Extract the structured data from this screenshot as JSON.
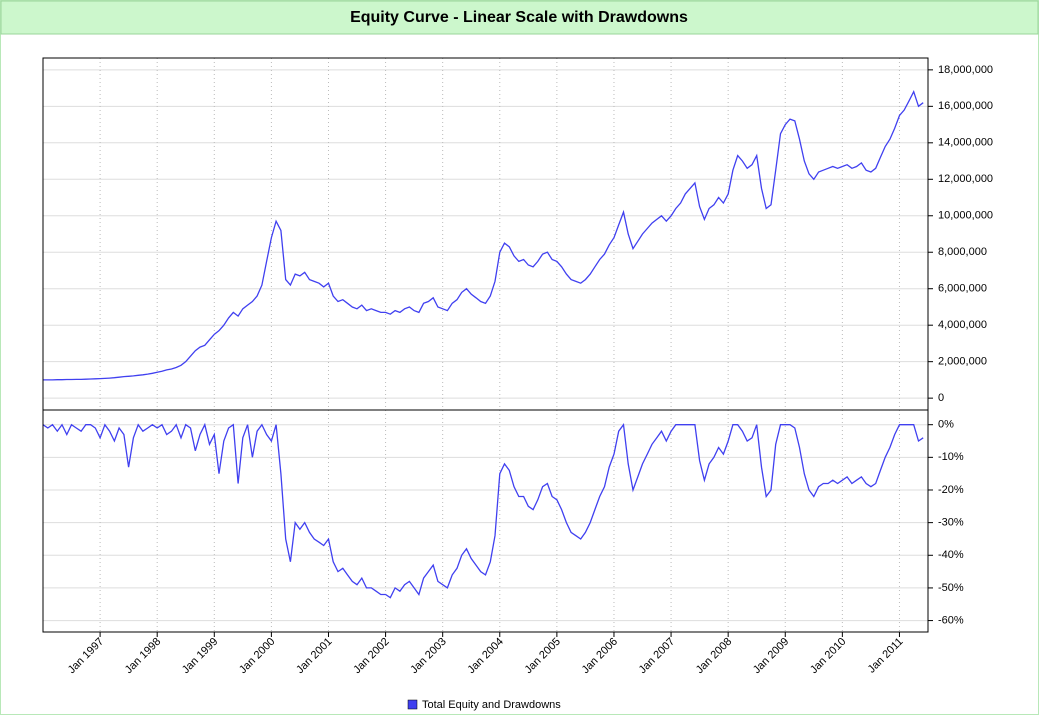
{
  "chart_data": [
    {
      "type": "line",
      "title": "Equity Curve - Linear Scale with Drawdowns",
      "xlim": [
        "1996-01",
        "2011-07"
      ],
      "x": [
        "1996-01",
        "1996-02",
        "1996-03",
        "1996-04",
        "1996-05",
        "1996-06",
        "1996-07",
        "1996-08",
        "1996-09",
        "1996-10",
        "1996-11",
        "1996-12",
        "1997-01",
        "1997-02",
        "1997-03",
        "1997-04",
        "1997-05",
        "1997-06",
        "1997-07",
        "1997-08",
        "1997-09",
        "1997-10",
        "1997-11",
        "1997-12",
        "1998-01",
        "1998-02",
        "1998-03",
        "1998-04",
        "1998-05",
        "1998-06",
        "1998-07",
        "1998-08",
        "1998-09",
        "1998-10",
        "1998-11",
        "1998-12",
        "1999-01",
        "1999-02",
        "1999-03",
        "1999-04",
        "1999-05",
        "1999-06",
        "1999-07",
        "1999-08",
        "1999-09",
        "1999-10",
        "1999-11",
        "1999-12",
        "2000-01",
        "2000-02",
        "2000-03",
        "2000-04",
        "2000-05",
        "2000-06",
        "2000-07",
        "2000-08",
        "2000-09",
        "2000-10",
        "2000-11",
        "2000-12",
        "2001-01",
        "2001-02",
        "2001-03",
        "2001-04",
        "2001-05",
        "2001-06",
        "2001-07",
        "2001-08",
        "2001-09",
        "2001-10",
        "2001-11",
        "2001-12",
        "2002-01",
        "2002-02",
        "2002-03",
        "2002-04",
        "2002-05",
        "2002-06",
        "2002-07",
        "2002-08",
        "2002-09",
        "2002-10",
        "2002-11",
        "2002-12",
        "2003-01",
        "2003-02",
        "2003-03",
        "2003-04",
        "2003-05",
        "2003-06",
        "2003-07",
        "2003-08",
        "2003-09",
        "2003-10",
        "2003-11",
        "2003-12",
        "2004-01",
        "2004-02",
        "2004-03",
        "2004-04",
        "2004-05",
        "2004-06",
        "2004-07",
        "2004-08",
        "2004-09",
        "2004-10",
        "2004-11",
        "2004-12",
        "2005-01",
        "2005-02",
        "2005-03",
        "2005-04",
        "2005-05",
        "2005-06",
        "2005-07",
        "2005-08",
        "2005-09",
        "2005-10",
        "2005-11",
        "2005-12",
        "2006-01",
        "2006-02",
        "2006-03",
        "2006-04",
        "2006-05",
        "2006-06",
        "2006-07",
        "2006-08",
        "2006-09",
        "2006-10",
        "2006-11",
        "2006-12",
        "2007-01",
        "2007-02",
        "2007-03",
        "2007-04",
        "2007-05",
        "2007-06",
        "2007-07",
        "2007-08",
        "2007-09",
        "2007-10",
        "2007-11",
        "2007-12",
        "2008-01",
        "2008-02",
        "2008-03",
        "2008-04",
        "2008-05",
        "2008-06",
        "2008-07",
        "2008-08",
        "2008-09",
        "2008-10",
        "2008-11",
        "2008-12",
        "2009-01",
        "2009-02",
        "2009-03",
        "2009-04",
        "2009-05",
        "2009-06",
        "2009-07",
        "2009-08",
        "2009-09",
        "2009-10",
        "2009-11",
        "2009-12",
        "2010-01",
        "2010-02",
        "2010-03",
        "2010-04",
        "2010-05",
        "2010-06",
        "2010-07",
        "2010-08",
        "2010-09",
        "2010-10",
        "2010-11",
        "2010-12",
        "2011-01",
        "2011-02",
        "2011-03",
        "2011-04",
        "2011-05",
        "2011-06"
      ],
      "series": [
        {
          "name": "Total Equity and Drawdowns",
          "color": "#4040f0",
          "values": [
            1000000,
            1000000,
            1000000,
            1010000,
            1010000,
            1020000,
            1020000,
            1030000,
            1030000,
            1040000,
            1050000,
            1060000,
            1070000,
            1080000,
            1100000,
            1120000,
            1150000,
            1180000,
            1200000,
            1220000,
            1250000,
            1280000,
            1320000,
            1360000,
            1420000,
            1480000,
            1550000,
            1600000,
            1680000,
            1800000,
            2000000,
            2300000,
            2600000,
            2800000,
            2900000,
            3200000,
            3500000,
            3700000,
            4000000,
            4400000,
            4700000,
            4500000,
            4900000,
            5100000,
            5300000,
            5600000,
            6200000,
            7500000,
            8800000,
            9700000,
            9200000,
            6500000,
            6200000,
            6800000,
            6700000,
            6900000,
            6500000,
            6400000,
            6300000,
            6100000,
            6300000,
            5600000,
            5300000,
            5400000,
            5200000,
            5000000,
            4900000,
            5100000,
            4800000,
            4900000,
            4800000,
            4700000,
            4700000,
            4600000,
            4800000,
            4700000,
            4900000,
            5000000,
            4800000,
            4700000,
            5200000,
            5300000,
            5500000,
            5000000,
            4900000,
            4800000,
            5200000,
            5400000,
            5800000,
            6000000,
            5700000,
            5500000,
            5300000,
            5200000,
            5600000,
            6400000,
            8000000,
            8500000,
            8300000,
            7800000,
            7500000,
            7600000,
            7300000,
            7200000,
            7500000,
            7900000,
            8000000,
            7600000,
            7500000,
            7200000,
            6800000,
            6500000,
            6400000,
            6300000,
            6500000,
            6800000,
            7200000,
            7600000,
            7900000,
            8400000,
            8800000,
            9500000,
            10200000,
            9000000,
            8200000,
            8600000,
            9000000,
            9300000,
            9600000,
            9800000,
            10000000,
            9700000,
            10000000,
            10400000,
            10700000,
            11200000,
            11500000,
            11800000,
            10500000,
            9800000,
            10400000,
            10600000,
            11000000,
            10700000,
            11200000,
            12500000,
            13300000,
            13000000,
            12600000,
            12800000,
            13300000,
            11500000,
            10400000,
            10600000,
            12500000,
            14500000,
            15000000,
            15300000,
            15200000,
            14200000,
            13000000,
            12300000,
            12000000,
            12400000,
            12500000,
            12600000,
            12700000,
            12600000,
            12700000,
            12800000,
            12600000,
            12700000,
            12900000,
            12500000,
            12400000,
            12600000,
            13200000,
            13800000,
            14200000,
            14800000,
            15500000,
            15800000,
            16300000,
            16800000,
            16000000,
            16200000
          ]
        }
      ],
      "ylim": [
        -650000,
        18650000
      ],
      "yticks": [
        0,
        {
          "value": 2000000,
          "label": "2,000,000"
        },
        {
          "value": 4000000,
          "label": "4,000,000"
        },
        {
          "value": 6000000,
          "label": "6,000,000"
        },
        {
          "value": 8000000,
          "label": "8,000,000"
        },
        {
          "value": 10000000,
          "label": "10,000,000"
        },
        {
          "value": 12000000,
          "label": "12,000,000"
        },
        {
          "value": 14000000,
          "label": "14,000,000"
        },
        {
          "value": 16000000,
          "label": "16,000,000"
        },
        {
          "value": 18000000,
          "label": "18,000,000"
        }
      ],
      "grid": true
    },
    {
      "type": "line",
      "series": [
        {
          "color": "#4040f0",
          "values": [
            0,
            -1,
            0,
            -2,
            0,
            -3,
            0,
            -1,
            -2,
            0,
            0,
            -1,
            -4,
            0,
            -2,
            -5,
            -1,
            -3,
            -13,
            -4,
            0,
            -2,
            -1,
            0,
            -1,
            0,
            -3,
            -2,
            0,
            -4,
            0,
            -1,
            -8,
            -3,
            0,
            -6,
            -3,
            -15,
            -5,
            -1,
            0,
            -18,
            -4,
            0,
            -10,
            -2,
            0,
            -3,
            -5,
            0,
            -15,
            -35,
            -42,
            -30,
            -32,
            -30,
            -33,
            -35,
            -36,
            -37,
            -35,
            -42,
            -45,
            -44,
            -46,
            -48,
            -49,
            -47,
            -50,
            -50,
            -51,
            -52,
            -52,
            -53,
            -50,
            -51,
            -49,
            -48,
            -50,
            -52,
            -47,
            -45,
            -43,
            -48,
            -49,
            -50,
            -46,
            -44,
            -40,
            -38,
            -41,
            -43,
            -45,
            -46,
            -42,
            -34,
            -15,
            -12,
            -14,
            -19,
            -22,
            -22,
            -25,
            -26,
            -23,
            -19,
            -18,
            -22,
            -23,
            -26,
            -30,
            -33,
            -34,
            -35,
            -33,
            -30,
            -26,
            -22,
            -19,
            -13,
            -9,
            -2,
            0,
            -12,
            -20,
            -16,
            -12,
            -9,
            -6,
            -4,
            -2,
            -5,
            -2,
            0,
            0,
            0,
            0,
            0,
            -11,
            -17,
            -12,
            -10,
            -7,
            -9,
            -5,
            0,
            0,
            -2,
            -5,
            -4,
            0,
            -13,
            -22,
            -20,
            -6,
            0,
            0,
            0,
            -1,
            -7,
            -15,
            -20,
            -22,
            -19,
            -18,
            -18,
            -17,
            -18,
            -17,
            -16,
            -18,
            -17,
            -16,
            -18,
            -19,
            -18,
            -14,
            -10,
            -7,
            -3,
            0,
            0,
            0,
            0,
            -5,
            -4
          ]
        }
      ],
      "ylim": [
        -63.5,
        4.5
      ],
      "yticks": [
        {
          "value": 0,
          "label": "0%"
        },
        {
          "value": -10,
          "label": "-10%"
        },
        {
          "value": -20,
          "label": "-20%"
        },
        {
          "value": -30,
          "label": "-30%"
        },
        {
          "value": -40,
          "label": "-40%"
        },
        {
          "value": -50,
          "label": "-50%"
        },
        {
          "value": -60,
          "label": "-60%"
        }
      ],
      "xticks": [
        {
          "value": "1997-01",
          "label": "Jan 1997"
        },
        {
          "value": "1998-01",
          "label": "Jan 1998"
        },
        {
          "value": "1999-01",
          "label": "Jan 1999"
        },
        {
          "value": "2000-01",
          "label": "Jan 2000"
        },
        {
          "value": "2001-01",
          "label": "Jan 2001"
        },
        {
          "value": "2002-01",
          "label": "Jan 2002"
        },
        {
          "value": "2003-01",
          "label": "Jan 2003"
        },
        {
          "value": "2004-01",
          "label": "Jan 2004"
        },
        {
          "value": "2005-01",
          "label": "Jan 2005"
        },
        {
          "value": "2006-01",
          "label": "Jan 2006"
        },
        {
          "value": "2007-01",
          "label": "Jan 2007"
        },
        {
          "value": "2008-01",
          "label": "Jan 2008"
        },
        {
          "value": "2009-01",
          "label": "Jan 2009"
        },
        {
          "value": "2010-01",
          "label": "Jan 2010"
        },
        {
          "value": "2011-01",
          "label": "Jan 2011"
        }
      ],
      "grid": true
    }
  ]
}
